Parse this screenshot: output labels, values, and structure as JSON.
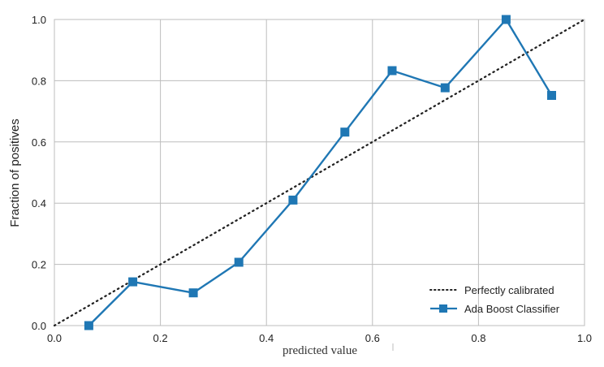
{
  "chart_data": {
    "type": "line",
    "title": "",
    "xlabel": "predicted value",
    "ylabel": "Fraction of positives",
    "xlim": [
      0.0,
      1.0
    ],
    "ylim": [
      0.0,
      1.0
    ],
    "x_ticks": [
      "0.0",
      "0.2",
      "0.4",
      "0.6",
      "0.8",
      "1.0"
    ],
    "y_ticks": [
      "0.0",
      "0.2",
      "0.4",
      "0.6",
      "0.8",
      "1.0"
    ],
    "grid": true,
    "legend_position": "lower-right",
    "series": [
      {
        "name": "Perfectly calibrated",
        "style": "dotted",
        "color": "#222222",
        "x": [
          0.0,
          1.0
        ],
        "y": [
          0.0,
          1.0
        ]
      },
      {
        "name": "Ada Boost Classifier",
        "style": "solid-square-markers",
        "color": "#1f77b4",
        "x": [
          0.065,
          0.148,
          0.262,
          0.348,
          0.45,
          0.548,
          0.637,
          0.737,
          0.852,
          0.938
        ],
        "y": [
          0.0,
          0.143,
          0.107,
          0.207,
          0.41,
          0.632,
          0.833,
          0.777,
          1.0,
          0.752
        ]
      }
    ]
  },
  "colors": {
    "grid": "#bdbdbd",
    "frame": "#bdbdbd",
    "calibrated": "#222222",
    "classifier": "#1f77b4"
  }
}
